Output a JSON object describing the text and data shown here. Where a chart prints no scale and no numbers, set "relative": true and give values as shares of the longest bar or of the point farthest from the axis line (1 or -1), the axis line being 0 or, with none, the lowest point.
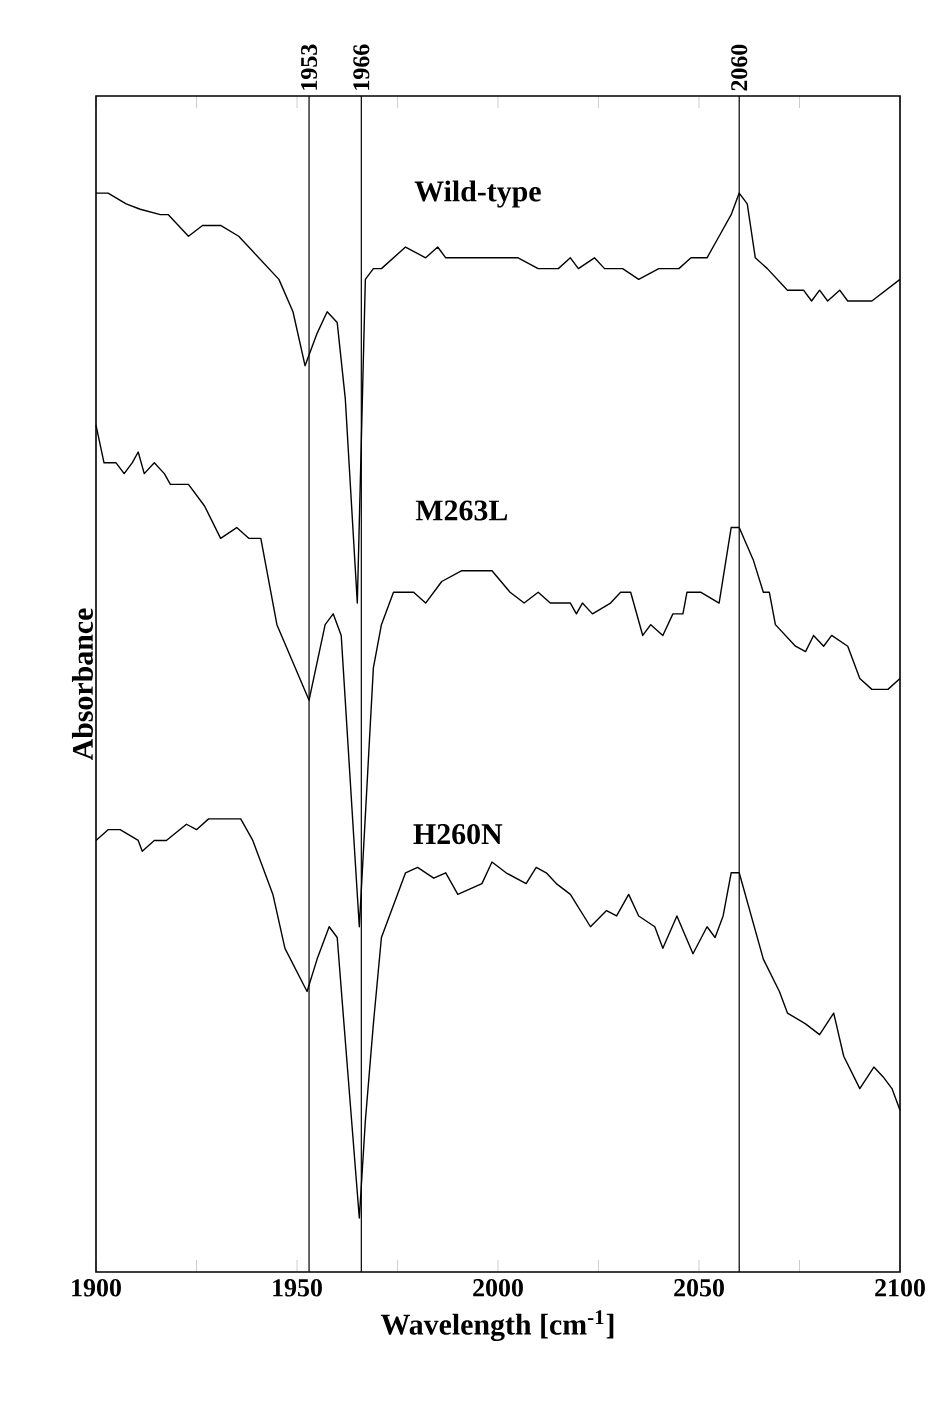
{
  "chart_data": {
    "type": "line",
    "relative": true,
    "xlabel": "Wavelength [cm$^{-1}$]",
    "ylabel": "Absorbance",
    "xlim": [
      1900,
      2100
    ],
    "xticks": [
      1900,
      {
        "value": 1925,
        "label": null
      },
      1950,
      {
        "value": 1975,
        "label": null
      },
      2000,
      {
        "value": 2025,
        "label": null
      },
      2050,
      {
        "value": 2075,
        "label": null
      },
      2100
    ],
    "grid": false,
    "marker": "none",
    "line_style": "solid",
    "ref_lines": [
      {
        "axis": "x",
        "value": 1953,
        "label": "1953",
        "color": "#000000"
      },
      {
        "axis": "x",
        "value": 1966,
        "label": "1966",
        "color": "#000000"
      },
      {
        "axis": "x",
        "value": 2060,
        "label": "2060",
        "color": "#000000"
      }
    ],
    "series": [
      {
        "name": "Wild-type",
        "color": "#000000",
        "x": [
          1900,
          1903,
          1907.5,
          1911,
          1916,
          1918,
          1923,
          1926.5,
          1931,
          1935.5,
          1940.5,
          1945.5,
          1949,
          1952,
          1955,
          1957.5,
          1960,
          1962,
          1965,
          1967,
          1969,
          1971,
          1977,
          1982,
          1985,
          1987,
          1995,
          2001,
          2005,
          2010,
          2015,
          2018,
          2020,
          2024,
          2026.5,
          2031,
          2035,
          2040,
          2045,
          2048,
          2052,
          2055,
          2058,
          2060,
          2062,
          2064,
          2067,
          2072,
          2076,
          2078,
          2080,
          2082,
          2085,
          2087,
          2093,
          2100
        ],
        "values": [
          1.0,
          1.0,
          0.99,
          0.985,
          0.98,
          0.98,
          0.96,
          0.97,
          0.97,
          0.96,
          0.94,
          0.92,
          0.89,
          0.84,
          0.87,
          0.89,
          0.88,
          0.81,
          0.62,
          0.92,
          0.93,
          0.93,
          0.95,
          0.94,
          0.95,
          0.94,
          0.94,
          0.94,
          0.94,
          0.93,
          0.93,
          0.94,
          0.93,
          0.94,
          0.93,
          0.93,
          0.92,
          0.93,
          0.93,
          0.94,
          0.94,
          0.96,
          0.98,
          1.0,
          0.99,
          0.94,
          0.93,
          0.91,
          0.91,
          0.9,
          0.91,
          0.9,
          0.91,
          0.9,
          0.9,
          0.92
        ]
      },
      {
        "name": "M263L",
        "color": "#000000",
        "x": [
          1900,
          1902,
          1905,
          1907,
          1909,
          1910.5,
          1912,
          1914.5,
          1917,
          1918.5,
          1923,
          1927,
          1931,
          1935,
          1938,
          1941,
          1945,
          1953,
          1957,
          1959,
          1961,
          1965.5,
          1969,
          1971,
          1974,
          1977,
          1979,
          1982,
          1986,
          1991,
          1995,
          1998.5,
          2003,
          2006.5,
          2010,
          2013,
          2018,
          2019.5,
          2021,
          2023.5,
          2028,
          2030.5,
          2033,
          2036,
          2038,
          2041,
          2043.5,
          2046,
          2047,
          2050.5,
          2055,
          2058,
          2060,
          2063.5,
          2066,
          2067.5,
          2069,
          2074,
          2076.5,
          2078.5,
          2081,
          2083,
          2087,
          2090,
          2093,
          2097,
          2100
        ],
        "values": [
          0.785,
          0.75,
          0.75,
          0.74,
          0.75,
          0.76,
          0.74,
          0.75,
          0.74,
          0.73,
          0.73,
          0.71,
          0.68,
          0.69,
          0.68,
          0.68,
          0.6,
          0.53,
          0.6,
          0.61,
          0.59,
          0.32,
          0.56,
          0.6,
          0.63,
          0.63,
          0.63,
          0.62,
          0.64,
          0.65,
          0.65,
          0.65,
          0.63,
          0.62,
          0.63,
          0.62,
          0.62,
          0.61,
          0.62,
          0.61,
          0.62,
          0.63,
          0.63,
          0.59,
          0.6,
          0.59,
          0.61,
          0.61,
          0.63,
          0.63,
          0.62,
          0.69,
          0.69,
          0.66,
          0.63,
          0.63,
          0.6,
          0.58,
          0.575,
          0.59,
          0.58,
          0.59,
          0.58,
          0.55,
          0.54,
          0.54,
          0.55
        ]
      },
      {
        "name": "H260N",
        "color": "#000000",
        "x": [
          1900,
          1903,
          1906,
          1910.5,
          1911.5,
          1914.5,
          1917.5,
          1922.5,
          1925,
          1928,
          1936,
          1939,
          1941,
          1944,
          1947,
          1952.5,
          1955,
          1958,
          1960,
          1962,
          1965.5,
          1967,
          1969,
          1971,
          1974,
          1977,
          1980,
          1984,
          1987,
          1990,
          1996,
          1998.5,
          2002,
          2007,
          2009.5,
          2012,
          2014.5,
          2018,
          2023,
          2027,
          2029.5,
          2032.5,
          2035,
          2039,
          2041,
          2044.5,
          2048.5,
          2052,
          2054,
          2056,
          2058,
          2060,
          2063,
          2066,
          2070,
          2072,
          2076.5,
          2080,
          2083.5,
          2086,
          2090,
          2093.5,
          2096,
          2098,
          2100
        ],
        "values": [
          0.4,
          0.41,
          0.41,
          0.4,
          0.39,
          0.4,
          0.4,
          0.415,
          0.41,
          0.42,
          0.42,
          0.4,
          0.38,
          0.35,
          0.3,
          0.26,
          0.29,
          0.32,
          0.31,
          0.215,
          0.05,
          0.14,
          0.23,
          0.31,
          0.34,
          0.37,
          0.375,
          0.365,
          0.37,
          0.35,
          0.36,
          0.38,
          0.37,
          0.36,
          0.375,
          0.37,
          0.36,
          0.35,
          0.32,
          0.335,
          0.33,
          0.35,
          0.33,
          0.32,
          0.3,
          0.33,
          0.295,
          0.32,
          0.31,
          0.33,
          0.37,
          0.37,
          0.33,
          0.29,
          0.26,
          0.24,
          0.23,
          0.22,
          0.24,
          0.2,
          0.17,
          0.19,
          0.18,
          0.17,
          0.15
        ]
      }
    ]
  }
}
